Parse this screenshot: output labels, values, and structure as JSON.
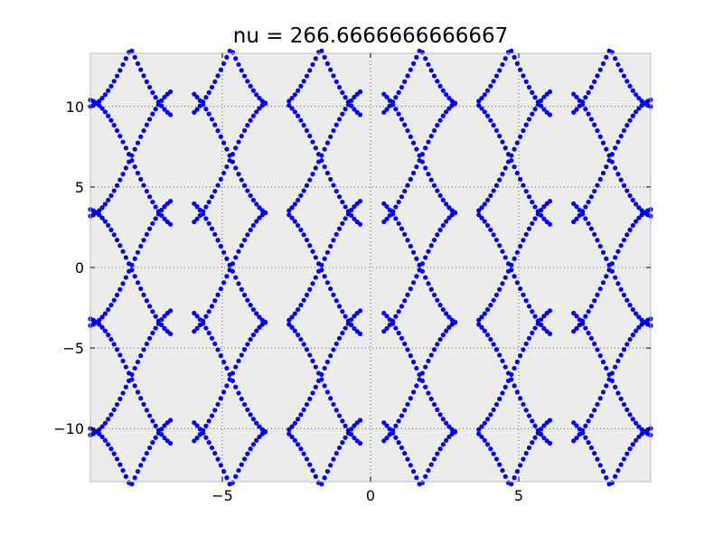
{
  "chart_data": {
    "type": "scatter",
    "title": "nu = 266.6666666666667",
    "xlabel": "",
    "ylabel": "",
    "xlim": [
      -9.45,
      9.45
    ],
    "ylim": [
      -13.3,
      13.3
    ],
    "grid": true,
    "x_ticks": [
      {
        "value": -5,
        "label": "−5"
      },
      {
        "value": 0,
        "label": "0"
      },
      {
        "value": 5,
        "label": "5"
      }
    ],
    "y_ticks": [
      {
        "value": 10,
        "label": "10"
      },
      {
        "value": 5,
        "label": "5"
      },
      {
        "value": 0,
        "label": "0"
      },
      {
        "value": -5,
        "label": "−5"
      },
      {
        "value": -10,
        "label": "−10"
      }
    ],
    "marker_color": "#0000ff",
    "background_color": "#ececec",
    "series": [
      {
        "model": "band-structure",
        "period": 6.4,
        "x_step": 0.1,
        "center_energy": [
          -13.6,
          -6.8,
          0,
          6.8,
          13.6
        ],
        "amplitude": 4.0,
        "offset": 0.35,
        "gap_half_width": 0.35,
        "gap_centers": [
          -6.4,
          -3.2,
          0,
          3.2,
          6.4
        ]
      }
    ]
  }
}
